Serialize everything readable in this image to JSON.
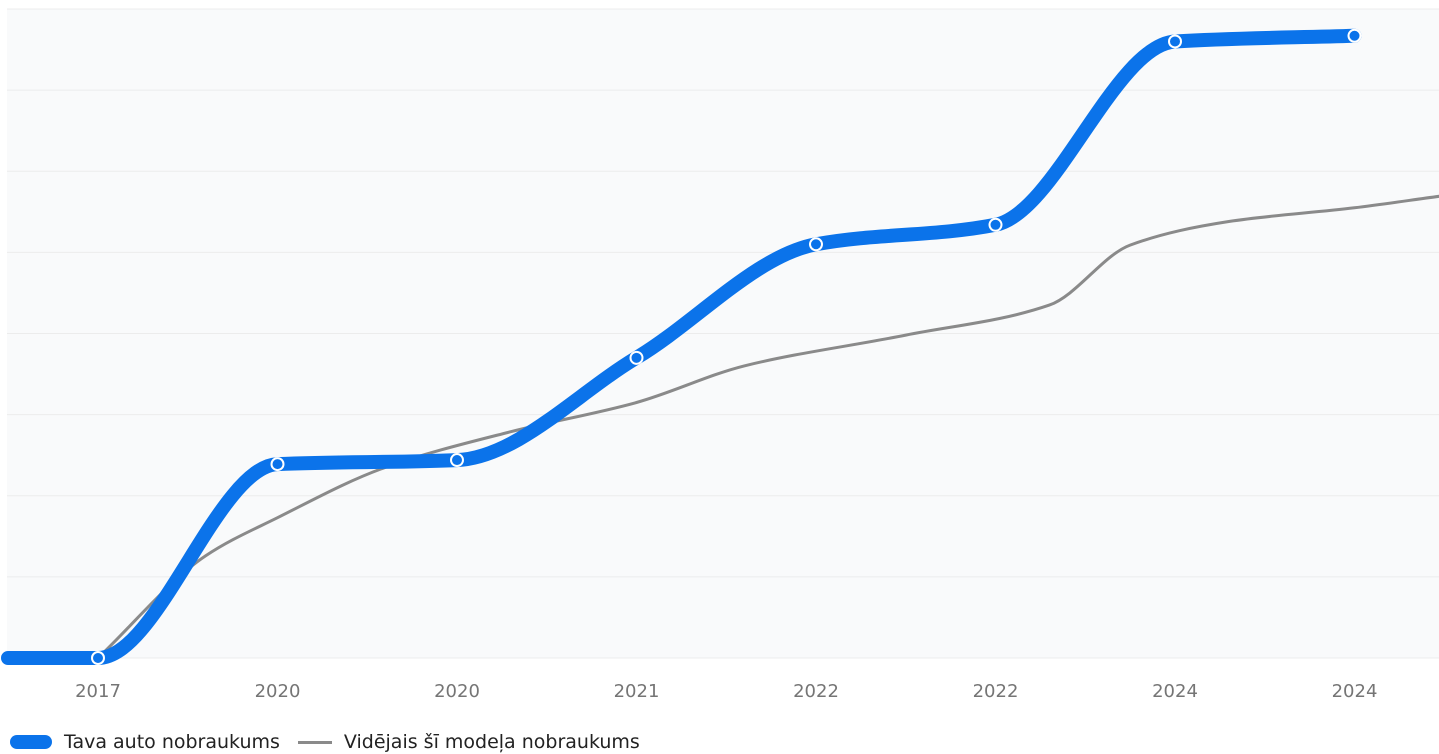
{
  "chart_data": {
    "type": "line",
    "categories": [
      "2017",
      "2020",
      "2020",
      "2021",
      "2022",
      "2022",
      "2024",
      "2024"
    ],
    "x_ticks": [
      "2017",
      "2020",
      "2020",
      "2021",
      "2022",
      "2022",
      "2024",
      "2024"
    ],
    "ylim": [
      0,
      8
    ],
    "grid": true,
    "legend_position": "bottom-left",
    "series": [
      {
        "name": "Tava auto nobraukums",
        "color": "#0b73ea",
        "style": "thick-smooth-with-markers",
        "x": [
          0,
          1,
          2,
          3,
          4,
          5,
          6,
          7
        ],
        "values": [
          0,
          2.39,
          2.44,
          3.7,
          5.1,
          5.34,
          7.6,
          7.67
        ]
      },
      {
        "name": "Vidējais šī modeļa nobraukums",
        "color": "#8a8a8a",
        "style": "thin-smooth",
        "x": [
          0,
          0.6,
          1.0,
          1.6,
          2.3,
          3.0,
          3.6,
          4.5,
          5.3,
          5.75,
          6.3,
          7.0,
          7.5
        ],
        "values": [
          0,
          1.26,
          1.73,
          2.35,
          2.79,
          3.15,
          3.6,
          3.98,
          4.35,
          5.09,
          5.38,
          5.55,
          5.7
        ]
      }
    ]
  },
  "legend": {
    "series1": "Tava auto nobraukums",
    "series2": "Vidējais šī modeļa nobraukums"
  }
}
